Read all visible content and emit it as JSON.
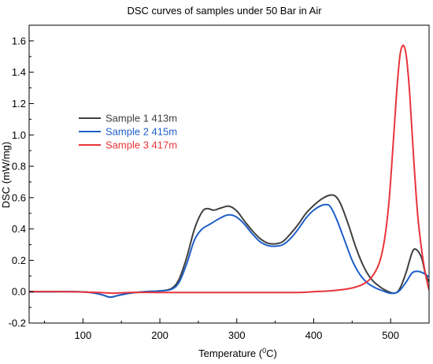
{
  "chart_data": {
    "type": "line",
    "title": "DSC curves of samples under 50 Bar in Air",
    "xlabel_main": "Temperature (",
    "xlabel_sup": "0",
    "xlabel_end": "C)",
    "ylabel": "DSC (mW/mg)",
    "xlim": [
      30,
      550
    ],
    "ylim": [
      -0.2,
      1.7
    ],
    "xticks": [
      100,
      200,
      300,
      400,
      500
    ],
    "yticks": [
      -0.2,
      0.0,
      0.2,
      0.4,
      0.6,
      0.8,
      1.0,
      1.2,
      1.4,
      1.6
    ],
    "legend_position": "center-left",
    "series": [
      {
        "name": "Sample 1 413m",
        "color": "#404040",
        "x": [
          30,
          60,
          90,
          110,
          125,
          135,
          145,
          160,
          180,
          200,
          215,
          225,
          235,
          245,
          255,
          262,
          270,
          280,
          290,
          300,
          310,
          320,
          330,
          340,
          350,
          360,
          370,
          380,
          390,
          400,
          410,
          420,
          428,
          435,
          445,
          455,
          465,
          475,
          485,
          495,
          505,
          512,
          520,
          528,
          533,
          540,
          545,
          550
        ],
        "y": [
          0.0,
          0.0,
          0.0,
          -0.005,
          -0.02,
          -0.035,
          -0.025,
          -0.01,
          0.0,
          0.005,
          0.02,
          0.08,
          0.22,
          0.4,
          0.51,
          0.53,
          0.52,
          0.535,
          0.545,
          0.515,
          0.45,
          0.39,
          0.34,
          0.31,
          0.305,
          0.32,
          0.37,
          0.43,
          0.5,
          0.55,
          0.59,
          0.615,
          0.61,
          0.56,
          0.43,
          0.28,
          0.16,
          0.08,
          0.035,
          0.005,
          -0.01,
          0.02,
          0.12,
          0.25,
          0.27,
          0.22,
          0.12,
          0.06
        ]
      },
      {
        "name": "Sample 2 415m",
        "color": "#1f5fc8",
        "x": [
          30,
          60,
          90,
          110,
          125,
          135,
          145,
          160,
          180,
          200,
          215,
          225,
          235,
          245,
          255,
          265,
          275,
          285,
          292,
          300,
          310,
          320,
          330,
          340,
          350,
          360,
          370,
          380,
          390,
          400,
          410,
          417,
          422,
          430,
          440,
          450,
          460,
          470,
          480,
          490,
          500,
          510,
          520,
          528,
          535,
          542,
          548,
          550
        ],
        "y": [
          0.0,
          0.0,
          0.0,
          -0.005,
          -0.02,
          -0.035,
          -0.025,
          -0.01,
          0.0,
          0.005,
          0.015,
          0.06,
          0.18,
          0.33,
          0.4,
          0.43,
          0.46,
          0.485,
          0.49,
          0.475,
          0.43,
          0.37,
          0.32,
          0.295,
          0.29,
          0.3,
          0.34,
          0.4,
          0.47,
          0.52,
          0.55,
          0.555,
          0.54,
          0.46,
          0.33,
          0.2,
          0.11,
          0.055,
          0.025,
          0.005,
          -0.01,
          0.0,
          0.06,
          0.12,
          0.13,
          0.12,
          0.1,
          0.1
        ]
      },
      {
        "name": "Sample 3 417m",
        "color": "#e8343a",
        "x": [
          30,
          80,
          120,
          140,
          160,
          200,
          250,
          300,
          350,
          380,
          400,
          420,
          440,
          455,
          465,
          475,
          485,
          492,
          498,
          503,
          508,
          512,
          515,
          518,
          521,
          525,
          530,
          535,
          540,
          545,
          550
        ],
        "y": [
          0.0,
          0.0,
          -0.005,
          -0.01,
          -0.005,
          -0.005,
          -0.005,
          -0.005,
          -0.005,
          -0.005,
          0.0,
          0.005,
          0.015,
          0.03,
          0.05,
          0.09,
          0.18,
          0.33,
          0.58,
          0.92,
          1.28,
          1.5,
          1.565,
          1.56,
          1.48,
          1.25,
          0.85,
          0.5,
          0.28,
          0.12,
          0.01
        ]
      }
    ]
  }
}
